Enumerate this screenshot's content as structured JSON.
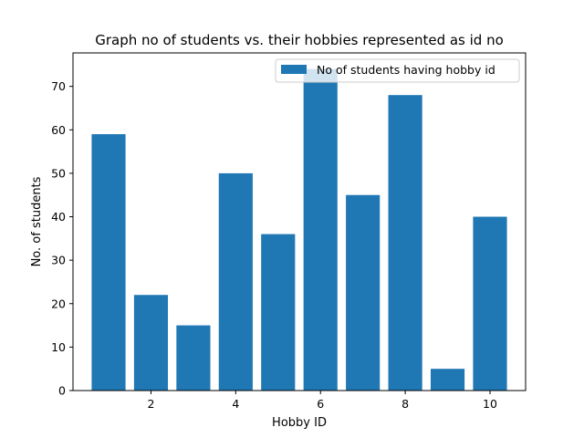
{
  "chart_data": {
    "type": "bar",
    "title": "Graph no of students vs. their hobbies represented as id no",
    "xlabel": "Hobby ID",
    "ylabel": "No. of students",
    "x": [
      1,
      2,
      3,
      4,
      5,
      6,
      7,
      8,
      9,
      10
    ],
    "series": [
      {
        "name": "No of students having hobby id",
        "values": [
          59,
          22,
          15,
          50,
          36,
          74,
          45,
          68,
          5,
          40
        ],
        "color": "#1f77b4"
      }
    ],
    "xlim": [
      0.16,
      10.84
    ],
    "ylim": [
      0,
      77.7
    ],
    "xticks": [
      2,
      4,
      6,
      8,
      10
    ],
    "yticks": [
      0,
      10,
      20,
      30,
      40,
      50,
      60,
      70
    ],
    "bar_width": 0.8,
    "grid": false,
    "legend_position": "top-right"
  }
}
